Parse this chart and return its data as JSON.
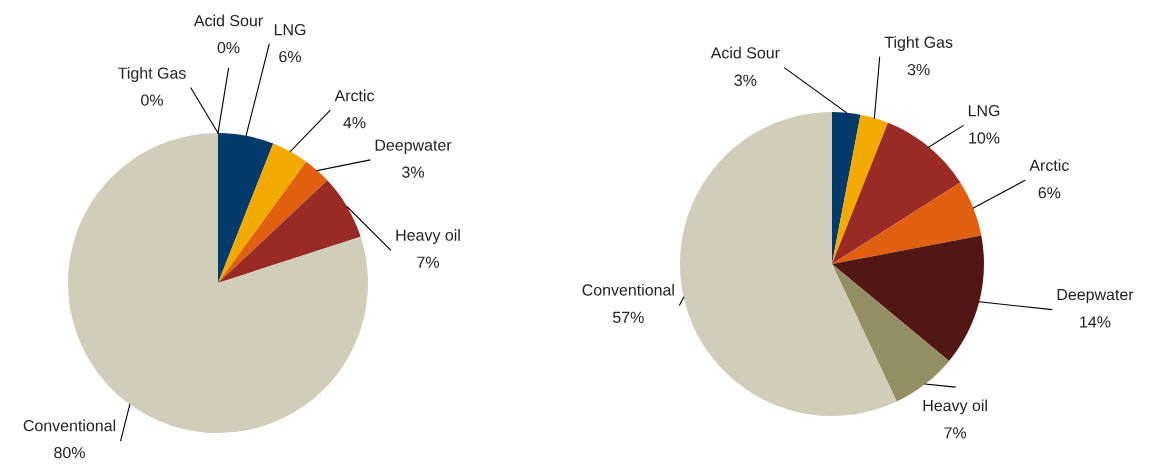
{
  "chart_data": [
    {
      "type": "pie",
      "categories": [
        "Tight Gas",
        "Acid Sour",
        "LNG",
        "Arctic",
        "Deepwater",
        "Heavy oil",
        "Conventional"
      ],
      "values": [
        0,
        0,
        6,
        4,
        3,
        7,
        80
      ],
      "value_labels": [
        "0%",
        "0%",
        "6%",
        "4%",
        "3%",
        "7%",
        "80%"
      ],
      "colors": [
        "#f2a900",
        "#003a6b",
        "#003a6b",
        "#f2a900",
        "#e06010",
        "#9a2a25",
        "#d0cdb9"
      ],
      "legend": false
    },
    {
      "type": "pie",
      "categories": [
        "Acid Sour",
        "Tight Gas",
        "LNG",
        "Arctic",
        "Deepwater",
        "Heavy oil",
        "Conventional"
      ],
      "values": [
        3,
        3,
        10,
        6,
        14,
        7,
        57
      ],
      "value_labels": [
        "3%",
        "3%",
        "10%",
        "6%",
        "14%",
        "7%",
        "57%"
      ],
      "colors": [
        "#003a6b",
        "#f2a900",
        "#9a2a25",
        "#e06010",
        "#521715",
        "#938f63",
        "#d0cdb9"
      ],
      "legend": false
    }
  ]
}
